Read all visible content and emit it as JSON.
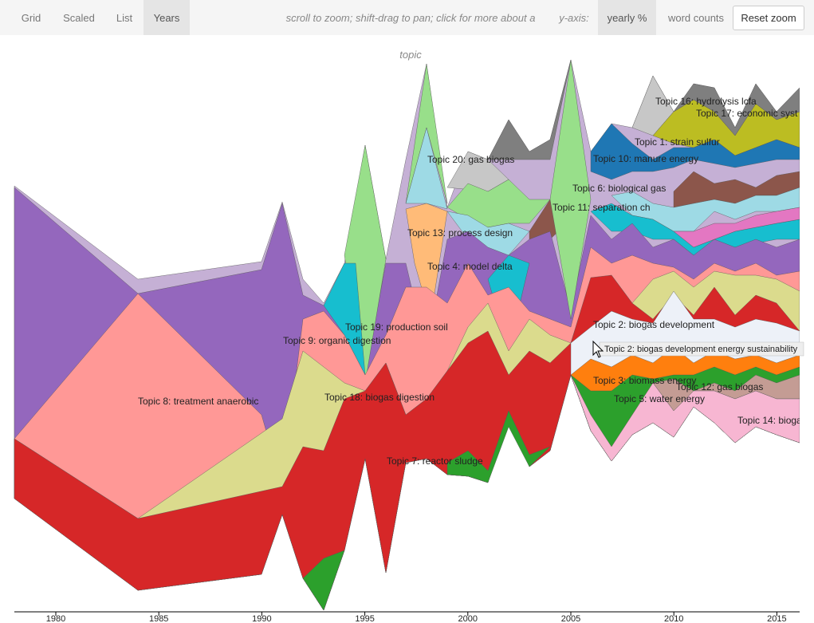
{
  "nav": {
    "tabs": [
      "Grid",
      "Scaled",
      "List",
      "Years"
    ],
    "hint": "scroll to zoom; shift-drag to pan; click for more about a topic",
    "yaxis_label": "y-axis:",
    "yaxis_options": [
      "yearly %",
      "word counts"
    ],
    "reset": "Reset zoom"
  },
  "chart": {
    "x_ticks": [
      "1980",
      "1985",
      "1990",
      "1995",
      "2000",
      "2005",
      "2010",
      "2015"
    ],
    "topic_labels": [
      "Topic 16: hydrolysis lcfa",
      "Topic 17: economic syst",
      "Topic 20: gas biogas",
      "Topic 1: strain sulfur",
      "Topic 10: manure energy",
      "Topic 6: biological gas",
      "Topic 11: separation ch",
      "Topic 13: process design",
      "Topic 4: model delta",
      "Topic 2: biogas development",
      "Topic 19: production soil",
      "Topic 9: organic digestion",
      "Topic 3: biomass energy",
      "Topic 12: gas biogas",
      "Topic 5: water energy",
      "Topic 18: biogas digestion",
      "Topic 8: treatment anaerobic",
      "Topic 14: bioga",
      "Topic 7: reactor sludge"
    ],
    "tooltip": "Topic 2: biogas development energy sustainability"
  }
}
